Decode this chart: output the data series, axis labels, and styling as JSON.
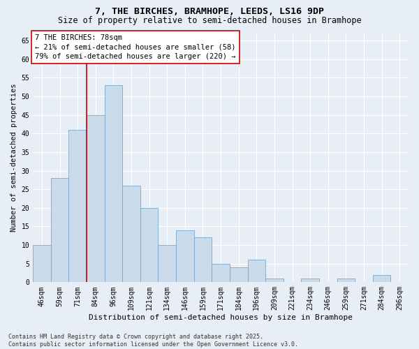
{
  "title1": "7, THE BIRCHES, BRAMHOPE, LEEDS, LS16 9DP",
  "title2": "Size of property relative to semi-detached houses in Bramhope",
  "xlabel": "Distribution of semi-detached houses by size in Bramhope",
  "ylabel": "Number of semi-detached properties",
  "categories": [
    "46sqm",
    "59sqm",
    "71sqm",
    "84sqm",
    "96sqm",
    "109sqm",
    "121sqm",
    "134sqm",
    "146sqm",
    "159sqm",
    "171sqm",
    "184sqm",
    "196sqm",
    "209sqm",
    "221sqm",
    "234sqm",
    "246sqm",
    "259sqm",
    "271sqm",
    "284sqm",
    "296sqm"
  ],
  "values": [
    10,
    28,
    41,
    45,
    53,
    26,
    20,
    10,
    14,
    12,
    5,
    4,
    6,
    1,
    0,
    1,
    0,
    1,
    0,
    2,
    0
  ],
  "bar_color": "#c9daea",
  "bar_edge_color": "#7aa8cc",
  "background_color": "#e8eef5",
  "grid_color": "#ffffff",
  "vline_x": 2.5,
  "annotation_title": "7 THE BIRCHES: 78sqm",
  "annotation_line1": "← 21% of semi-detached houses are smaller (58)",
  "annotation_line2": "79% of semi-detached houses are larger (220) →",
  "vline_color": "#cc0000",
  "annotation_box_color": "#ffffff",
  "annotation_box_edge_color": "#cc0000",
  "ylim": [
    0,
    67
  ],
  "yticks": [
    0,
    5,
    10,
    15,
    20,
    25,
    30,
    35,
    40,
    45,
    50,
    55,
    60,
    65
  ],
  "footer": "Contains HM Land Registry data © Crown copyright and database right 2025.\nContains public sector information licensed under the Open Government Licence v3.0.",
  "title1_fontsize": 9.5,
  "title2_fontsize": 8.5,
  "xlabel_fontsize": 8,
  "ylabel_fontsize": 7.5,
  "tick_fontsize": 7,
  "annotation_fontsize": 7.5,
  "footer_fontsize": 6
}
